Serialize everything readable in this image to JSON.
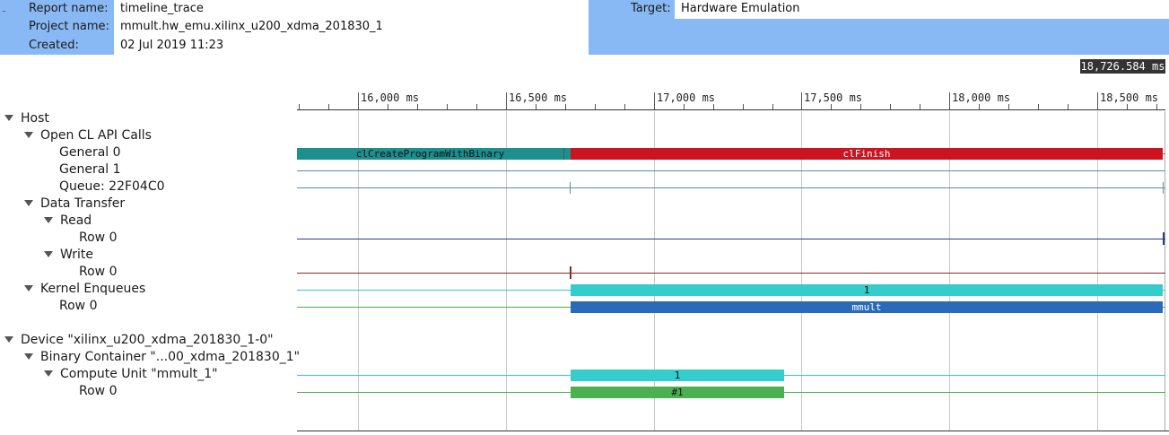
{
  "header": {
    "report_name_label": "Report name:",
    "report_name": "timeline_trace",
    "project_name_label": "Project name:",
    "project_name": "mmult.hw_emu.xilinx_u200_xdma_201830_1",
    "created_label": "Created:",
    "created": "02 Jul 2019 11:23",
    "target_label": "Target:",
    "target": "Hardware Emulation",
    "collapse_glyph": "–"
  },
  "cursor_time": "18,726.584 ms",
  "time_axis": {
    "tick_labels": [
      "16,000 ms",
      "16,500 ms",
      "17,000 ms",
      "17,500 ms",
      "18,000 ms",
      "18,500 ms"
    ]
  },
  "tree": {
    "host": "Host",
    "opencl_api_calls": "Open CL API Calls",
    "general_0": "General 0",
    "general_1": "General 1",
    "queue": "Queue: 22F04C0",
    "data_transfer": "Data Transfer",
    "read": "Read",
    "read_row": "Row 0",
    "write": "Write",
    "write_row": "Row 0",
    "kernel_enqueues": "Kernel Enqueues",
    "kernel_row": "Row 0",
    "device": "Device \"xilinx_u200_xdma_201830_1-0\"",
    "binary_container": "Binary Container \"...00_xdma_201830_1\"",
    "compute_unit": "Compute Unit \"mmult_1\"",
    "cu_row": "Row 0"
  },
  "events": {
    "create_program": "clCreateProgramWithBinary",
    "finish": "clFinish",
    "kernel_enqueue": "1",
    "kernel_name": "mmult",
    "cu_enqueue": "1",
    "cu_run": "#1"
  },
  "colors": {
    "header_bg": "#89b9f5",
    "create_program": "#1c8f8f",
    "finish": "#cc1420",
    "kernel_enqueue": "#35cccc",
    "kernel_run": "#2a6ab8",
    "cu_enqueue": "#35cccc",
    "cu_run": "#4caf50"
  }
}
